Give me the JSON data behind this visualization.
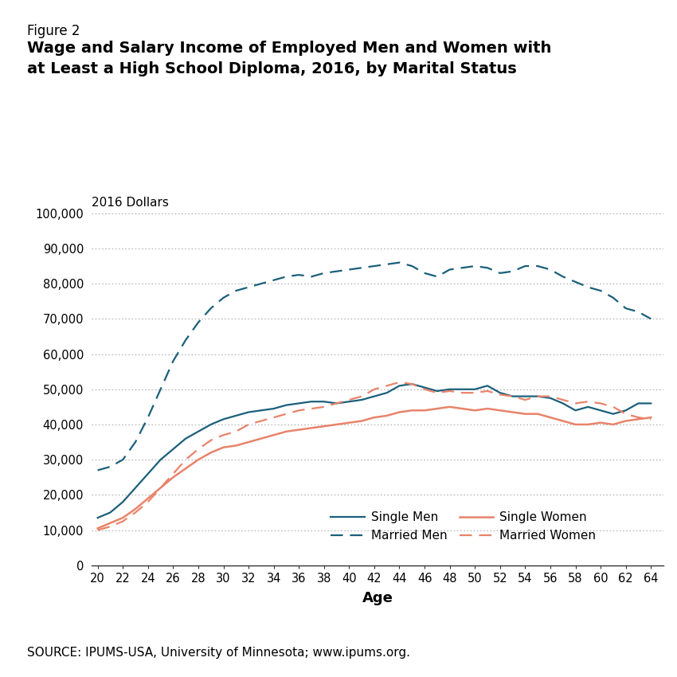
{
  "figure_label": "Figure 2",
  "title_line1": "Wage and Salary Income of Employed Men and Women with",
  "title_line2": "at Least a High School Diploma, 2016, by Marital Status",
  "ylabel": "2016 Dollars",
  "xlabel": "Age",
  "source": "SOURCE: IPUMS-USA, University of Minnesota; www.ipums.org.",
  "ages": [
    20,
    21,
    22,
    23,
    24,
    25,
    26,
    27,
    28,
    29,
    30,
    31,
    32,
    33,
    34,
    35,
    36,
    37,
    38,
    39,
    40,
    41,
    42,
    43,
    44,
    45,
    46,
    47,
    48,
    49,
    50,
    51,
    52,
    53,
    54,
    55,
    56,
    57,
    58,
    59,
    60,
    61,
    62,
    63,
    64
  ],
  "single_men": [
    13500,
    15000,
    18000,
    22000,
    26000,
    30000,
    33000,
    36000,
    38000,
    40000,
    41500,
    42500,
    43500,
    44000,
    44500,
    45500,
    46000,
    46500,
    46500,
    46000,
    46500,
    47000,
    48000,
    49000,
    51000,
    51500,
    50500,
    49500,
    50000,
    50000,
    50000,
    51000,
    49000,
    48000,
    48000,
    48000,
    47500,
    46000,
    44000,
    45000,
    44000,
    43000,
    44000,
    46000,
    46000
  ],
  "married_men": [
    27000,
    28000,
    30000,
    35000,
    42000,
    50000,
    58000,
    64000,
    69000,
    73000,
    76000,
    78000,
    79000,
    80000,
    81000,
    82000,
    82500,
    82000,
    83000,
    83500,
    84000,
    84500,
    85000,
    85500,
    86000,
    85000,
    83000,
    82000,
    84000,
    84500,
    85000,
    84500,
    83000,
    83500,
    85000,
    85000,
    84000,
    82000,
    80500,
    79000,
    78000,
    76000,
    73000,
    72000,
    70000
  ],
  "single_women": [
    10500,
    12000,
    13500,
    16000,
    19000,
    22000,
    25000,
    27500,
    30000,
    32000,
    33500,
    34000,
    35000,
    36000,
    37000,
    38000,
    38500,
    39000,
    39500,
    40000,
    40500,
    41000,
    42000,
    42500,
    43500,
    44000,
    44000,
    44500,
    45000,
    44500,
    44000,
    44500,
    44000,
    43500,
    43000,
    43000,
    42000,
    41000,
    40000,
    40000,
    40500,
    40000,
    41000,
    41500,
    42000
  ],
  "married_women": [
    10000,
    11000,
    12500,
    15000,
    18000,
    22000,
    26000,
    30000,
    33000,
    35500,
    37000,
    38000,
    40000,
    41000,
    42000,
    43000,
    44000,
    44500,
    45000,
    46000,
    47000,
    48000,
    50000,
    51000,
    52000,
    51500,
    50000,
    49000,
    49500,
    49000,
    49000,
    49500,
    48500,
    48000,
    47000,
    48000,
    48000,
    47000,
    46000,
    46500,
    46000,
    45000,
    43000,
    42000,
    41500
  ],
  "color_men": "#1a5f7a",
  "color_women": "#e8836a",
  "ylim": [
    0,
    100000
  ],
  "yticks": [
    0,
    10000,
    20000,
    30000,
    40000,
    50000,
    60000,
    70000,
    80000,
    90000,
    100000
  ],
  "ytick_labels": [
    "0",
    "10,000",
    "20,000",
    "30,000",
    "40,000",
    "50,000",
    "60,000",
    "70,000",
    "80,000",
    "90,000",
    "100,000"
  ]
}
